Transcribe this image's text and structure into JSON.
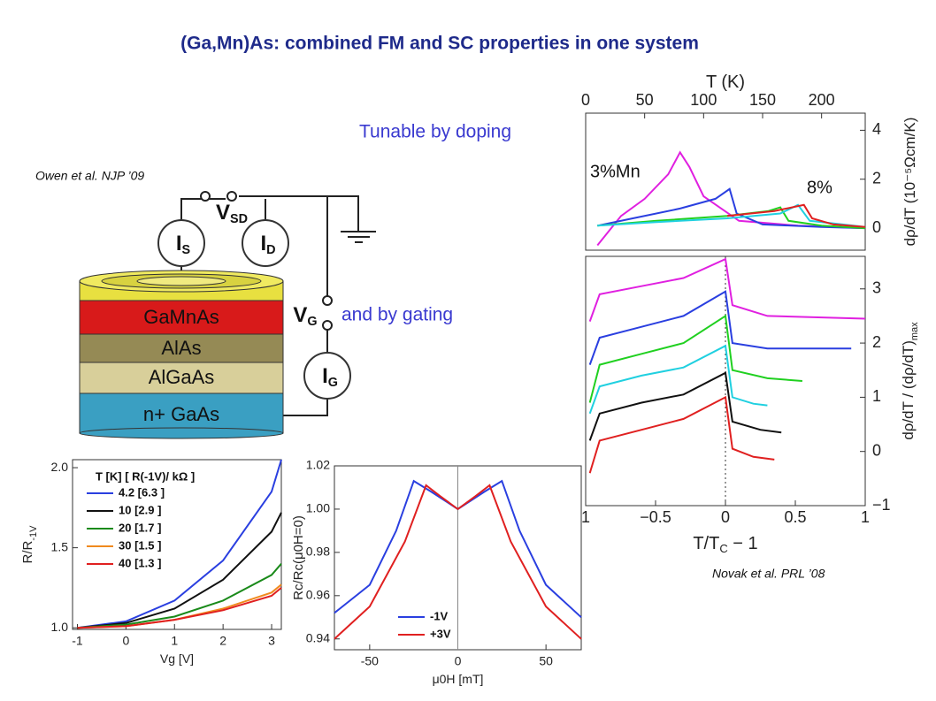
{
  "title": "(Ga,Mn)As: combined FM and SC properties in one system",
  "notes": {
    "doping": "Tunable by doping",
    "gating": "and by gating",
    "owen": "Owen et al. NJP ’09",
    "novak": "Novak et al. PRL ’08"
  },
  "device": {
    "layers": [
      "GaMnAs",
      "AlAs",
      "AlGaAs",
      "n+ GaAs"
    ],
    "meters": [
      {
        "symbol": "I",
        "sub": "S"
      },
      {
        "symbol": "I",
        "sub": "D"
      },
      {
        "symbol": "I",
        "sub": "G"
      }
    ],
    "voltages": [
      {
        "symbol": "V",
        "sub": "SD"
      },
      {
        "symbol": "V",
        "sub": "G"
      }
    ]
  },
  "chart_data": [
    {
      "type": "line",
      "x_label": "Vg [V]",
      "y_label": "R/R",
      "y_label_sub": "-1V",
      "legend_title": "T [K]  [ R(-1V)/ kΩ ]",
      "x": [
        -1,
        0,
        1,
        2,
        3,
        3.2
      ],
      "xlim": [
        -1.1,
        3.2
      ],
      "xticks": [
        -1,
        0,
        1,
        2,
        3
      ],
      "ylim": [
        0.99,
        2.05
      ],
      "yticks": [
        {
          "value": 1,
          "label": "1.0"
        },
        1.5,
        {
          "value": 2,
          "label": "2.0"
        }
      ],
      "series": [
        {
          "name": "4.2 [6.3 ]",
          "color": "#2a3fe0",
          "values": [
            1.0,
            1.04,
            1.17,
            1.42,
            1.85,
            2.05
          ]
        },
        {
          "name": "10 [2.9 ]",
          "color": "#111111",
          "values": [
            1.0,
            1.03,
            1.12,
            1.3,
            1.6,
            1.72
          ]
        },
        {
          "name": "20 [1.7 ]",
          "color": "#1a8a1a",
          "values": [
            1.0,
            1.02,
            1.07,
            1.17,
            1.33,
            1.4
          ]
        },
        {
          "name": "30 [1.5 ]",
          "color": "#f08a1e",
          "values": [
            1.0,
            1.01,
            1.05,
            1.12,
            1.22,
            1.27
          ]
        },
        {
          "name": "40 [1.3 ]",
          "color": "#e02020",
          "values": [
            1.0,
            1.01,
            1.05,
            1.11,
            1.2,
            1.25
          ]
        }
      ]
    },
    {
      "type": "line",
      "x_label": "μ0H [mT]",
      "y_label": "Rc/Rc(μ0H=0)",
      "xlim": [
        -70,
        70
      ],
      "xticks": [
        -50,
        0,
        50
      ],
      "ylim": [
        0.935,
        1.02
      ],
      "yticks": [
        0.94,
        0.96,
        0.98,
        {
          "value": 1,
          "label": "1.00"
        },
        1.02
      ],
      "series": [
        {
          "name": "-1V",
          "color": "#2a3fe0",
          "x": [
            -70,
            -50,
            -35,
            -25,
            -15,
            0,
            15,
            25,
            35,
            50,
            70
          ],
          "values": [
            0.952,
            0.965,
            0.99,
            1.013,
            1.008,
            1.0,
            1.008,
            1.013,
            0.99,
            0.965,
            0.95
          ]
        },
        {
          "name": "+3V",
          "color": "#e02020",
          "x": [
            -70,
            -50,
            -30,
            -18,
            -10,
            0,
            10,
            18,
            30,
            50,
            70
          ],
          "values": [
            0.94,
            0.955,
            0.985,
            1.011,
            1.006,
            1.0,
            1.006,
            1.011,
            0.985,
            0.955,
            0.94
          ]
        }
      ]
    },
    {
      "type": "line",
      "x_label": "T  (K)",
      "y_label": "dρ/dT  (10⁻⁵Ωcm/K)",
      "annotations": [
        "3%Mn",
        "8%"
      ],
      "xlim": [
        0,
        237
      ],
      "xticks": [
        0,
        50,
        100,
        150,
        200
      ],
      "ylim": [
        -0.9,
        4.7
      ],
      "yticks": [
        0,
        2,
        4
      ],
      "series": [
        {
          "color": "#e020e0",
          "x": [
            10,
            30,
            50,
            70,
            80,
            88,
            100,
            130,
            180,
            237
          ],
          "values": [
            -0.7,
            0.5,
            1.2,
            2.2,
            3.1,
            2.5,
            1.3,
            0.3,
            0.1,
            0.0
          ]
        },
        {
          "color": "#2a3fe0",
          "x": [
            10,
            40,
            80,
            110,
            122,
            128,
            150,
            200,
            237
          ],
          "values": [
            0.1,
            0.4,
            0.8,
            1.2,
            1.6,
            0.6,
            0.15,
            0.05,
            0
          ]
        },
        {
          "color": "#20d020",
          "x": [
            10,
            60,
            120,
            155,
            165,
            172,
            200,
            237
          ],
          "values": [
            0.1,
            0.3,
            0.5,
            0.7,
            0.85,
            0.3,
            0.1,
            0
          ]
        },
        {
          "color": "#20d0e0",
          "x": [
            10,
            60,
            120,
            165,
            180,
            190,
            237
          ],
          "values": [
            0.1,
            0.25,
            0.4,
            0.6,
            0.95,
            0.3,
            0.05
          ]
        },
        {
          "color": "#e02020",
          "x": [
            120,
            160,
            185,
            192,
            210,
            237
          ],
          "values": [
            0.5,
            0.7,
            0.95,
            0.4,
            0.15,
            0.05
          ]
        }
      ]
    },
    {
      "type": "line",
      "x_label": "T/T",
      "x_label_sub": "C",
      "x_label_tail": " − 1",
      "y_label": "dρ/dT / (dρ/dT)",
      "y_label_sub": "max",
      "xlim": [
        -1,
        1
      ],
      "xticks": [
        {
          "value": -1,
          "label": "1"
        },
        {
          "value": -0.5,
          "label": "−0.5"
        },
        0,
        0.5,
        1
      ],
      "ylim": [
        -1,
        3.6
      ],
      "yticks": [
        {
          "value": -1,
          "label": "−1"
        },
        0,
        1,
        2,
        3
      ],
      "series": [
        {
          "color": "#e020e0",
          "x": [
            -0.97,
            -0.9,
            -0.6,
            -0.3,
            0,
            0.05,
            0.3,
            1.0
          ],
          "values": [
            2.4,
            2.9,
            3.05,
            3.2,
            3.55,
            2.7,
            2.5,
            2.45
          ]
        },
        {
          "color": "#2a3fe0",
          "x": [
            -0.97,
            -0.9,
            -0.6,
            -0.3,
            0,
            0.05,
            0.3,
            0.9
          ],
          "values": [
            1.6,
            2.1,
            2.3,
            2.5,
            2.95,
            2.0,
            1.9,
            1.9
          ]
        },
        {
          "color": "#20d020",
          "x": [
            -0.97,
            -0.9,
            -0.6,
            -0.3,
            0,
            0.05,
            0.3,
            0.55
          ],
          "values": [
            0.9,
            1.6,
            1.8,
            2.0,
            2.5,
            1.5,
            1.35,
            1.3
          ]
        },
        {
          "color": "#20d0e0",
          "x": [
            -0.97,
            -0.9,
            -0.6,
            -0.3,
            0,
            0.05,
            0.2,
            0.3
          ],
          "values": [
            0.7,
            1.2,
            1.4,
            1.55,
            1.95,
            1.0,
            0.88,
            0.85
          ]
        },
        {
          "color": "#111111",
          "x": [
            -0.97,
            -0.9,
            -0.6,
            -0.3,
            0,
            0.05,
            0.25,
            0.4
          ],
          "values": [
            0.2,
            0.7,
            0.9,
            1.05,
            1.45,
            0.55,
            0.4,
            0.35
          ]
        },
        {
          "color": "#e02020",
          "x": [
            -0.97,
            -0.9,
            -0.6,
            -0.3,
            0,
            0.05,
            0.2,
            0.35
          ],
          "values": [
            -0.4,
            0.2,
            0.4,
            0.6,
            1.0,
            0.05,
            -0.1,
            -0.15
          ]
        }
      ]
    }
  ]
}
